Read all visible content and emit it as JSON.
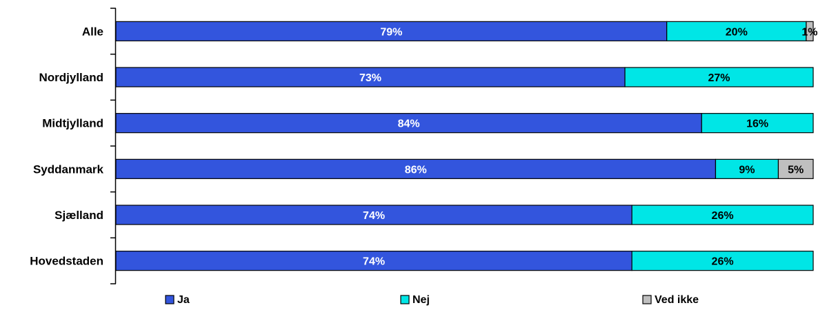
{
  "chart_data": {
    "type": "bar",
    "orientation": "horizontal",
    "stacked": true,
    "percent_stacked": true,
    "title": "",
    "xlabel": "",
    "ylabel": "",
    "xlim": [
      0,
      100
    ],
    "grid": false,
    "legend_position": "bottom",
    "categories": [
      "Alle",
      "Nordjylland",
      "Midtjylland",
      "Syddanmark",
      "Sjælland",
      "Hovedstaden"
    ],
    "series": [
      {
        "name": "Ja",
        "color": "#3355DD",
        "label_color": "#FFFFFF",
        "values": [
          79,
          73,
          84,
          86,
          74,
          74
        ],
        "labels": [
          "79%",
          "73%",
          "84%",
          "86%",
          "74%",
          "74%"
        ]
      },
      {
        "name": "Nej",
        "color": "#00E6E6",
        "label_color": "#000000",
        "values": [
          20,
          27,
          16,
          9,
          26,
          26
        ],
        "labels": [
          "20%",
          "27%",
          "16%",
          "9%",
          "26%",
          "26%"
        ]
      },
      {
        "name": "Ved ikke",
        "color": "#BFBFBF",
        "label_color": "#000000",
        "values": [
          1,
          0,
          0,
          5,
          0,
          0
        ],
        "labels": [
          "1%",
          "",
          "",
          "5%",
          "",
          ""
        ]
      }
    ]
  }
}
